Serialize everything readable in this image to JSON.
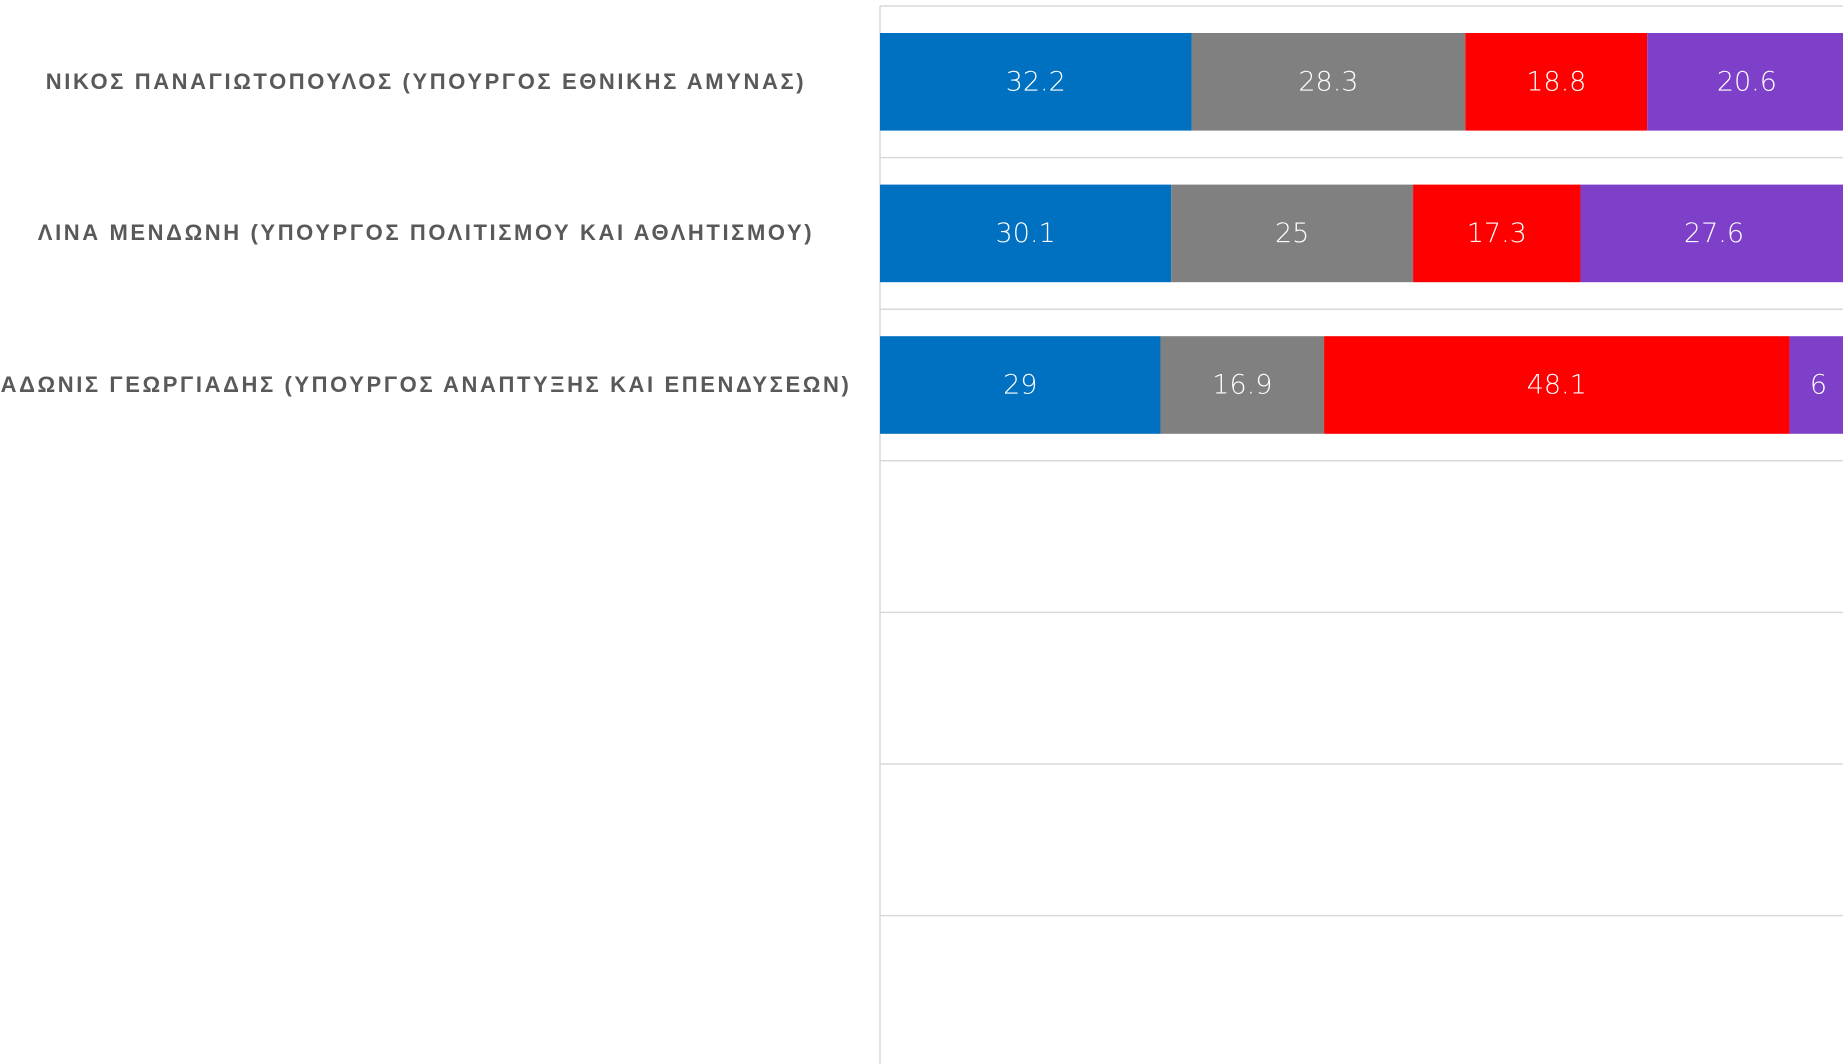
{
  "chart_data": {
    "type": "stacked_barh",
    "categories": [
      "ΝΙΚΟΣ ΠΑΝΑΓΙΩΤΟΠΟΥΛΟΣ (ΥΠΟΥΡΓΟΣ ΕΘΝΙΚΗΣ ΑΜΥΝΑΣ)",
      "ΛΙΝΑ ΜΕΝΔΩΝΗ (ΥΠΟΥΡΓΟΣ ΠΟΛΙΤΙΣΜΟΥ ΚΑΙ ΑΘΛΗΤΙΣΜΟΥ)",
      "ΑΔΩΝΙΣ ΓΕΩΡΓΙΑΔΗΣ (ΥΠΟΥΡΓΟΣ ΑΝΑΠΤΥΞΗΣ ΚΑΙ ΕΠΕΝΔΥΣΕΩΝ)",
      null,
      null,
      null,
      null
    ],
    "series": [
      {
        "color": "#0070c0",
        "values": [
          32.2,
          30.1,
          29,
          null,
          null,
          null,
          null
        ]
      },
      {
        "color": "#808080",
        "values": [
          28.3,
          25,
          16.9,
          null,
          null,
          null,
          null
        ]
      },
      {
        "color": "#ff0000",
        "values": [
          18.8,
          17.3,
          48.1,
          null,
          null,
          null,
          null
        ]
      },
      {
        "color": "#7e3fc9",
        "values": [
          20.6,
          27.6,
          6,
          null,
          null,
          null,
          null
        ]
      }
    ],
    "xlim": [
      0,
      100
    ],
    "data_labels": true
  }
}
